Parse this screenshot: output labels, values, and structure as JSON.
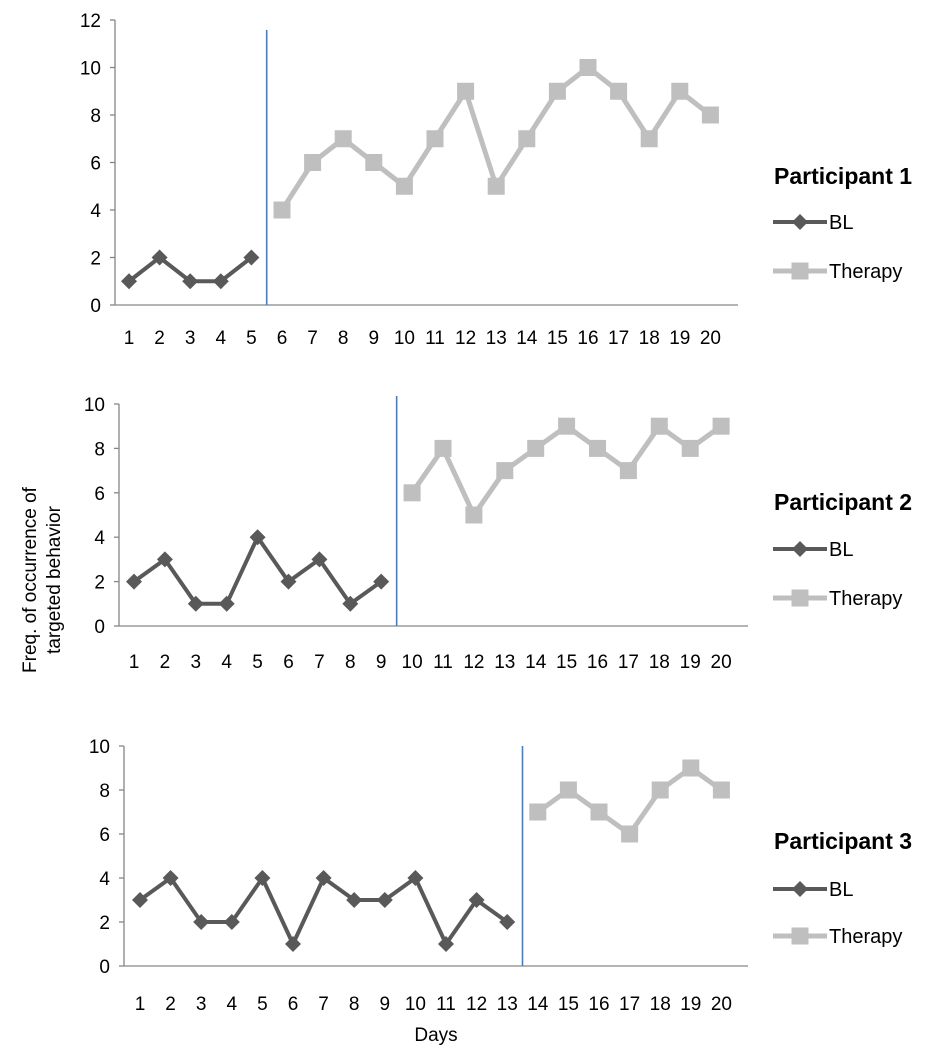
{
  "y_axis_label": [
    "Freq. of occurrence of",
    "targeted behavior"
  ],
  "x_axis_label": "Days",
  "colors": {
    "bl": "#595959",
    "therapy": "#bfbfbf",
    "phase_line": "#4a7ebb",
    "axis": "#868686"
  },
  "chart_data": [
    {
      "type": "line",
      "title": "Participant 1",
      "categories": [
        "1",
        "2",
        "3",
        "4",
        "5",
        "6",
        "7",
        "8",
        "9",
        "10",
        "11",
        "12",
        "13",
        "14",
        "15",
        "16",
        "17",
        "18",
        "19",
        "20"
      ],
      "ylim": [
        0,
        12
      ],
      "yticks": [
        "0",
        "2",
        "4",
        "6",
        "8",
        "10",
        "12"
      ],
      "grid": false,
      "legend_position": "right",
      "series": [
        {
          "name": "BL",
          "marker": "diamond",
          "x": [
            1,
            2,
            3,
            4,
            5
          ],
          "values": [
            1,
            2,
            1,
            1,
            2
          ]
        },
        {
          "name": "Therapy",
          "marker": "square",
          "x": [
            6,
            7,
            8,
            9,
            10,
            11,
            12,
            13,
            14,
            15,
            16,
            17,
            18,
            19,
            20
          ],
          "values": [
            4,
            6,
            7,
            6,
            5,
            7,
            9,
            5,
            7,
            9,
            10,
            9,
            7,
            9,
            8
          ]
        }
      ],
      "phase_change_after_day": 5
    },
    {
      "type": "line",
      "title": "Participant 2",
      "categories": [
        "1",
        "2",
        "3",
        "4",
        "5",
        "6",
        "7",
        "8",
        "9",
        "10",
        "11",
        "12",
        "13",
        "14",
        "15",
        "16",
        "17",
        "18",
        "19",
        "20"
      ],
      "ylim": [
        0,
        10
      ],
      "yticks": [
        "0",
        "2",
        "4",
        "6",
        "8",
        "10"
      ],
      "grid": false,
      "legend_position": "right",
      "series": [
        {
          "name": "BL",
          "marker": "diamond",
          "x": [
            1,
            2,
            3,
            4,
            5,
            6,
            7,
            8,
            9
          ],
          "values": [
            2,
            3,
            1,
            1,
            4,
            2,
            3,
            1,
            2
          ]
        },
        {
          "name": "Therapy",
          "marker": "square",
          "x": [
            10,
            11,
            12,
            13,
            14,
            15,
            16,
            17,
            18,
            19,
            20
          ],
          "values": [
            6,
            8,
            5,
            7,
            8,
            9,
            8,
            7,
            9,
            8,
            9
          ]
        }
      ],
      "phase_change_after_day": 9
    },
    {
      "type": "line",
      "title": "Participant 3",
      "categories": [
        "1",
        "2",
        "3",
        "4",
        "5",
        "6",
        "7",
        "8",
        "9",
        "10",
        "11",
        "12",
        "13",
        "14",
        "15",
        "16",
        "17",
        "18",
        "19",
        "20"
      ],
      "ylim": [
        0,
        10
      ],
      "yticks": [
        "0",
        "2",
        "4",
        "6",
        "8",
        "10"
      ],
      "grid": false,
      "legend_position": "right",
      "series": [
        {
          "name": "BL",
          "marker": "diamond",
          "x": [
            1,
            2,
            3,
            4,
            5,
            6,
            7,
            8,
            9,
            10,
            11,
            12,
            13
          ],
          "values": [
            3,
            4,
            2,
            2,
            4,
            1,
            4,
            3,
            3,
            4,
            1,
            3,
            2
          ]
        },
        {
          "name": "Therapy",
          "marker": "square",
          "x": [
            14,
            15,
            16,
            17,
            18,
            19,
            20
          ],
          "values": [
            7,
            8,
            7,
            6,
            8,
            9,
            8
          ]
        }
      ],
      "phase_change_after_day": 13
    }
  ]
}
